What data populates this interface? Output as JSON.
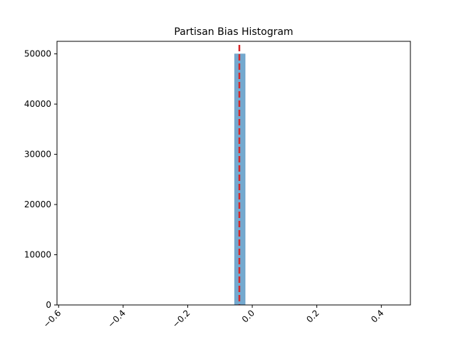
{
  "chart_data": {
    "type": "bar",
    "title": "Partisan Bias Histogram",
    "xlabel": "",
    "ylabel": "",
    "xlim": [
      -0.605,
      0.49
    ],
    "ylim": [
      0,
      52500
    ],
    "x_ticks": [
      -0.6,
      -0.4,
      -0.2,
      0.0,
      0.2,
      0.4
    ],
    "x_tick_labels": [
      "−0.6",
      "−0.4",
      "−0.2",
      "0.0",
      "0.2",
      "0.4"
    ],
    "y_ticks": [
      0,
      10000,
      20000,
      30000,
      40000,
      50000
    ],
    "y_tick_labels": [
      "0",
      "10000",
      "20000",
      "30000",
      "40000",
      "50000"
    ],
    "bins": [
      {
        "x0": -0.055,
        "x1": -0.022,
        "count": 50000
      }
    ],
    "reference_line": {
      "x": -0.04,
      "style": "dashed"
    },
    "grid": false,
    "legend": "none",
    "colors": {
      "bar": "#74a9cf",
      "bar_edge": "#5a93bd",
      "reference_line": "#d62728",
      "axis": "#000000"
    }
  }
}
